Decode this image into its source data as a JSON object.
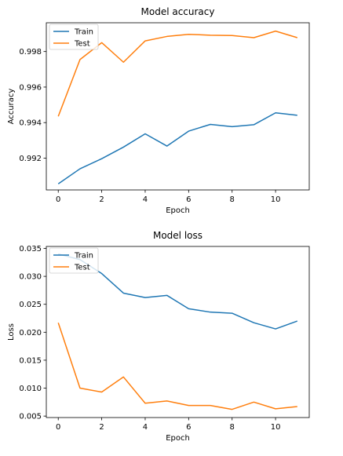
{
  "chart_data": [
    {
      "type": "line",
      "title": "Model accuracy",
      "xlabel": "Epoch",
      "ylabel": "Accuracy",
      "x": [
        0,
        1,
        2,
        3,
        4,
        5,
        6,
        7,
        8,
        9,
        10,
        11
      ],
      "xlim": [
        -0.55,
        11.55
      ],
      "ylim": [
        0.99021,
        0.99962
      ],
      "xticks": [
        0,
        2,
        4,
        6,
        8,
        10
      ],
      "yticks": [
        0.992,
        0.994,
        0.996,
        0.998
      ],
      "ytick_labels": [
        "0.992",
        "0.994",
        "0.996",
        "0.998"
      ],
      "grid": false,
      "legend_position": "top-left",
      "series": [
        {
          "name": "Train",
          "color": "#1f77b4",
          "values": [
            0.99055,
            0.9914,
            0.99197,
            0.99262,
            0.99337,
            0.99268,
            0.99352,
            0.9939,
            0.99377,
            0.99388,
            0.99455,
            0.99441
          ]
        },
        {
          "name": "Test",
          "color": "#ff7f0e",
          "values": [
            0.99435,
            0.99755,
            0.9985,
            0.9974,
            0.9986,
            0.99885,
            0.99897,
            0.99892,
            0.9989,
            0.99878,
            0.99915,
            0.99878
          ]
        }
      ]
    },
    {
      "type": "line",
      "title": "Model loss",
      "xlabel": "Epoch",
      "ylabel": "Loss",
      "x": [
        0,
        1,
        2,
        3,
        4,
        5,
        6,
        7,
        8,
        9,
        10,
        11
      ],
      "xlim": [
        -0.55,
        11.55
      ],
      "ylim": [
        0.00474,
        0.03535
      ],
      "xticks": [
        0,
        2,
        4,
        6,
        8,
        10
      ],
      "yticks": [
        0.005,
        0.01,
        0.015,
        0.02,
        0.025,
        0.03,
        0.035
      ],
      "ytick_labels": [
        "0.005",
        "0.010",
        "0.015",
        "0.020",
        "0.025",
        "0.030",
        "0.035"
      ],
      "grid": false,
      "legend_position": "top-left",
      "series": [
        {
          "name": "Train",
          "color": "#1f77b4",
          "values": [
            0.034,
            0.033,
            0.0305,
            0.027,
            0.0262,
            0.0266,
            0.0242,
            0.0236,
            0.0234,
            0.0217,
            0.0206,
            0.022
          ]
        },
        {
          "name": "Test",
          "color": "#ff7f0e",
          "values": [
            0.0217,
            0.01,
            0.0093,
            0.012,
            0.0073,
            0.0077,
            0.0069,
            0.0069,
            0.0062,
            0.0075,
            0.0063,
            0.0067
          ]
        }
      ]
    }
  ]
}
